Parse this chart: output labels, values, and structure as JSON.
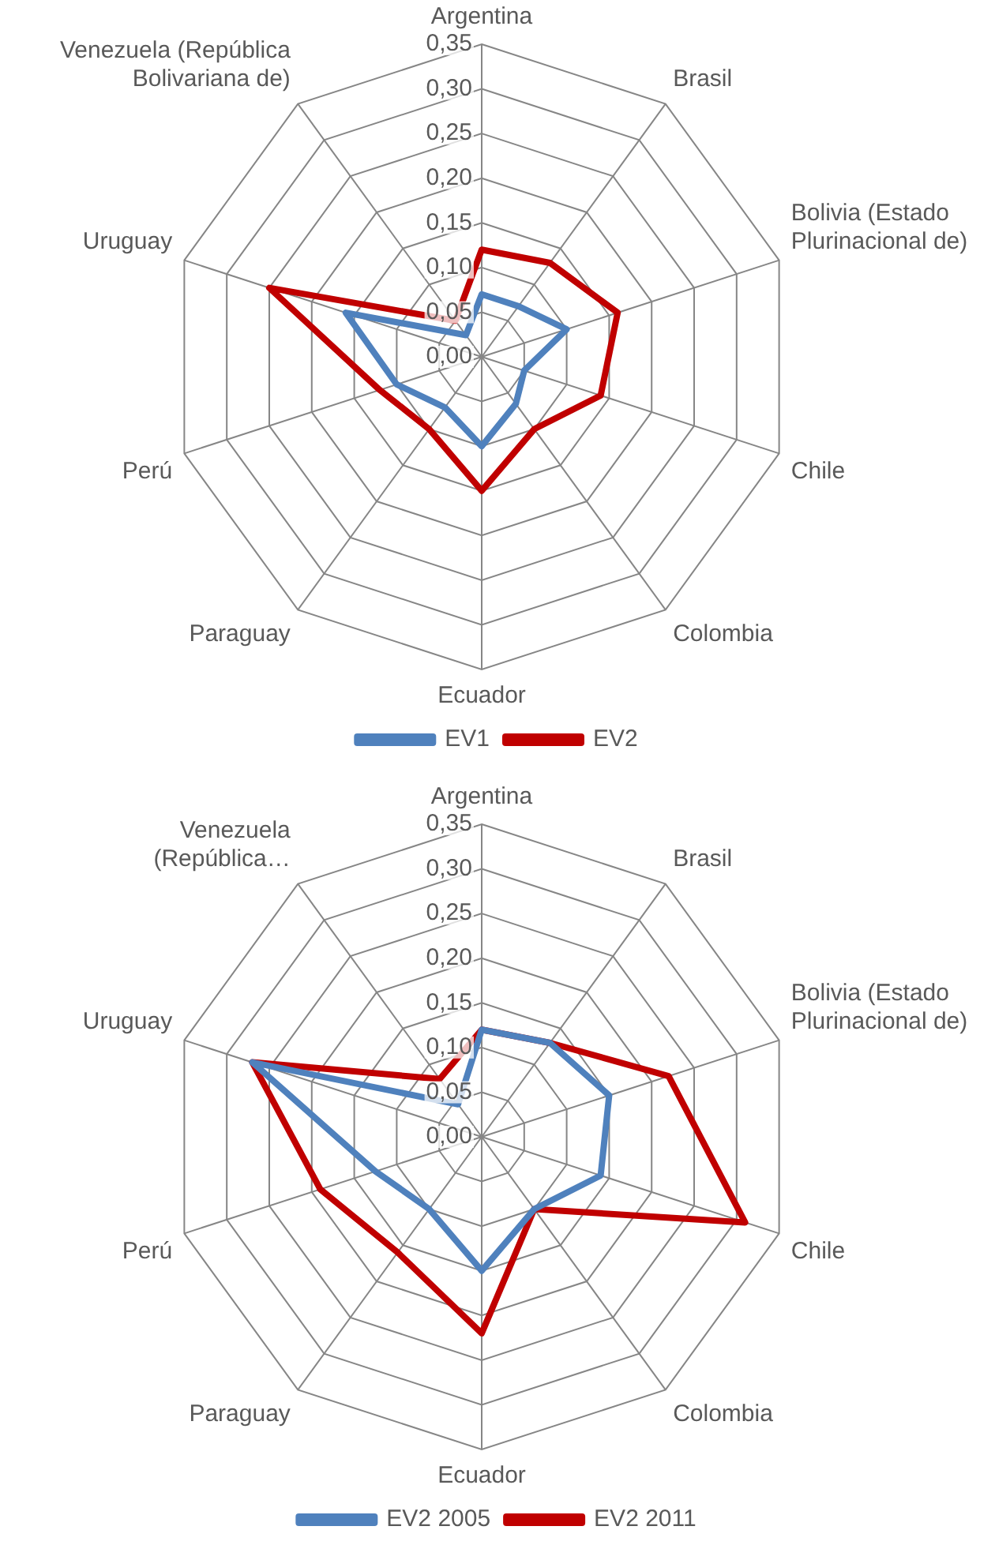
{
  "chart_data": [
    {
      "type": "radar",
      "categories": [
        "Argentina",
        "Brasil",
        "Bolivia (Estado Plurinacional de)",
        "Chile",
        "Colombia",
        "Ecuador",
        "Paraguay",
        "Perú",
        "Uruguay",
        "Venezuela (República Bolivariana de)"
      ],
      "series": [
        {
          "name": "EV1",
          "color": "#4f81bd",
          "values": [
            0.07,
            0.07,
            0.1,
            0.05,
            0.065,
            0.1,
            0.07,
            0.1,
            0.16,
            0.03
          ]
        },
        {
          "name": "EV2",
          "color": "#c00000",
          "values": [
            0.12,
            0.13,
            0.16,
            0.14,
            0.1,
            0.15,
            0.1,
            0.12,
            0.25,
            0.05
          ]
        }
      ],
      "ylim": [
        0,
        0.35
      ],
      "yticks": [
        {
          "value": 0,
          "label": "0,00"
        },
        {
          "value": 0.05,
          "label": "0,05"
        },
        {
          "value": 0.1,
          "label": "0,10"
        },
        {
          "value": 0.15,
          "label": "0,15"
        },
        {
          "value": 0.2,
          "label": "0,20"
        },
        {
          "value": 0.25,
          "label": "0,25"
        },
        {
          "value": 0.3,
          "label": "0,30"
        },
        {
          "value": 0.35,
          "label": "0,35"
        }
      ],
      "grid": true,
      "legend": "bottom",
      "marker": "none",
      "line_style": "solid"
    },
    {
      "type": "radar",
      "categories": [
        "Argentina",
        "Brasil",
        "Bolivia (Estado Plurinacional de)",
        "Chile",
        "Colombia",
        "Ecuador",
        "Paraguay",
        "Perú",
        "Uruguay",
        "Venezuela (República…"
      ],
      "series": [
        {
          "name": "EV2 2005",
          "color": "#4f81bd",
          "values": [
            0.12,
            0.13,
            0.15,
            0.14,
            0.1,
            0.15,
            0.1,
            0.125,
            0.27,
            0.045
          ]
        },
        {
          "name": "EV2 2011",
          "color": "#c00000",
          "values": [
            0.12,
            0.13,
            0.22,
            0.31,
            0.1,
            0.22,
            0.16,
            0.19,
            0.27,
            0.08
          ]
        }
      ],
      "ylim": [
        0,
        0.35
      ],
      "yticks": [
        {
          "value": 0,
          "label": "0,00"
        },
        {
          "value": 0.05,
          "label": "0,05"
        },
        {
          "value": 0.1,
          "label": "0,10"
        },
        {
          "value": 0.15,
          "label": "0,15"
        },
        {
          "value": 0.2,
          "label": "0,20"
        },
        {
          "value": 0.25,
          "label": "0,25"
        },
        {
          "value": 0.3,
          "label": "0,30"
        },
        {
          "value": 0.35,
          "label": "0,35"
        }
      ],
      "grid": true,
      "legend": "bottom",
      "marker": "none",
      "line_style": "solid"
    }
  ]
}
